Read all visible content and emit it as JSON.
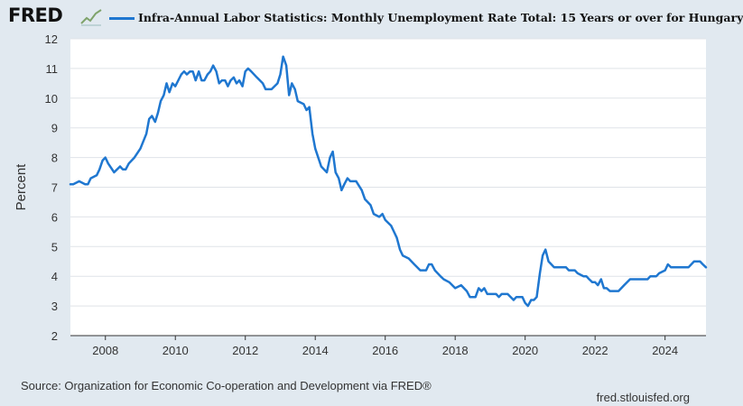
{
  "header": {
    "logo_text": "FRED",
    "logo_icon": "fred-chart-icon",
    "series_label": "Infra-Annual Labor Statistics: Monthly Unemployment Rate Total: 15 Years or over for Hungary",
    "series_color": "#1f77d0"
  },
  "footer": {
    "source": "Source: Organization for Economic Co-operation and Development via FRED®",
    "url": "fred.stlouisfed.org"
  },
  "chart_data": {
    "type": "line",
    "title": "Infra-Annual Labor Statistics: Monthly Unemployment Rate Total: 15 Years or over for Hungary",
    "xlabel": "",
    "ylabel": "Percent",
    "xlim": [
      2007.0,
      2025.17
    ],
    "ylim": [
      2,
      12
    ],
    "y_ticks": [
      2,
      3,
      4,
      5,
      6,
      7,
      8,
      9,
      10,
      11,
      12
    ],
    "x_ticks": [
      2008,
      2010,
      2012,
      2014,
      2016,
      2018,
      2020,
      2022,
      2024
    ],
    "grid": "horizontal",
    "series": [
      {
        "name": "Infra-Annual Labor Statistics: Monthly Unemployment Rate Total: 15 Years or over for Hungary",
        "color": "#1f77d0",
        "points": [
          [
            2007.0,
            7.1
          ],
          [
            2007.08,
            7.1
          ],
          [
            2007.25,
            7.2
          ],
          [
            2007.42,
            7.1
          ],
          [
            2007.5,
            7.1
          ],
          [
            2007.58,
            7.3
          ],
          [
            2007.75,
            7.4
          ],
          [
            2007.83,
            7.6
          ],
          [
            2007.92,
            7.9
          ],
          [
            2008.0,
            8.0
          ],
          [
            2008.08,
            7.8
          ],
          [
            2008.25,
            7.5
          ],
          [
            2008.42,
            7.7
          ],
          [
            2008.5,
            7.6
          ],
          [
            2008.58,
            7.6
          ],
          [
            2008.67,
            7.8
          ],
          [
            2008.83,
            8.0
          ],
          [
            2009.0,
            8.3
          ],
          [
            2009.17,
            8.8
          ],
          [
            2009.25,
            9.3
          ],
          [
            2009.33,
            9.4
          ],
          [
            2009.42,
            9.2
          ],
          [
            2009.5,
            9.5
          ],
          [
            2009.58,
            9.9
          ],
          [
            2009.67,
            10.1
          ],
          [
            2009.75,
            10.5
          ],
          [
            2009.83,
            10.2
          ],
          [
            2009.92,
            10.5
          ],
          [
            2010.0,
            10.4
          ],
          [
            2010.17,
            10.8
          ],
          [
            2010.25,
            10.9
          ],
          [
            2010.33,
            10.8
          ],
          [
            2010.42,
            10.9
          ],
          [
            2010.5,
            10.9
          ],
          [
            2010.58,
            10.6
          ],
          [
            2010.67,
            10.9
          ],
          [
            2010.75,
            10.6
          ],
          [
            2010.83,
            10.6
          ],
          [
            2010.92,
            10.8
          ],
          [
            2011.0,
            10.9
          ],
          [
            2011.08,
            11.1
          ],
          [
            2011.17,
            10.9
          ],
          [
            2011.25,
            10.5
          ],
          [
            2011.33,
            10.6
          ],
          [
            2011.42,
            10.6
          ],
          [
            2011.5,
            10.4
          ],
          [
            2011.58,
            10.6
          ],
          [
            2011.67,
            10.7
          ],
          [
            2011.75,
            10.5
          ],
          [
            2011.83,
            10.6
          ],
          [
            2011.92,
            10.4
          ],
          [
            2012.0,
            10.9
          ],
          [
            2012.08,
            11.0
          ],
          [
            2012.17,
            10.9
          ],
          [
            2012.33,
            10.7
          ],
          [
            2012.5,
            10.5
          ],
          [
            2012.58,
            10.3
          ],
          [
            2012.75,
            10.3
          ],
          [
            2012.92,
            10.5
          ],
          [
            2013.0,
            10.8
          ],
          [
            2013.08,
            11.4
          ],
          [
            2013.17,
            11.1
          ],
          [
            2013.25,
            10.1
          ],
          [
            2013.33,
            10.5
          ],
          [
            2013.42,
            10.3
          ],
          [
            2013.5,
            9.9
          ],
          [
            2013.67,
            9.8
          ],
          [
            2013.75,
            9.6
          ],
          [
            2013.83,
            9.7
          ],
          [
            2013.92,
            8.8
          ],
          [
            2014.0,
            8.3
          ],
          [
            2014.17,
            7.7
          ],
          [
            2014.33,
            7.5
          ],
          [
            2014.42,
            8.0
          ],
          [
            2014.5,
            8.2
          ],
          [
            2014.58,
            7.5
          ],
          [
            2014.67,
            7.3
          ],
          [
            2014.75,
            6.9
          ],
          [
            2014.83,
            7.1
          ],
          [
            2014.92,
            7.3
          ],
          [
            2015.0,
            7.2
          ],
          [
            2015.17,
            7.2
          ],
          [
            2015.33,
            6.9
          ],
          [
            2015.42,
            6.6
          ],
          [
            2015.58,
            6.4
          ],
          [
            2015.67,
            6.1
          ],
          [
            2015.83,
            6.0
          ],
          [
            2015.92,
            6.1
          ],
          [
            2016.0,
            5.9
          ],
          [
            2016.17,
            5.7
          ],
          [
            2016.25,
            5.5
          ],
          [
            2016.33,
            5.3
          ],
          [
            2016.42,
            4.9
          ],
          [
            2016.5,
            4.7
          ],
          [
            2016.67,
            4.6
          ],
          [
            2016.83,
            4.4
          ],
          [
            2017.0,
            4.2
          ],
          [
            2017.17,
            4.2
          ],
          [
            2017.25,
            4.4
          ],
          [
            2017.33,
            4.4
          ],
          [
            2017.42,
            4.2
          ],
          [
            2017.58,
            4.0
          ],
          [
            2017.67,
            3.9
          ],
          [
            2017.83,
            3.8
          ],
          [
            2018.0,
            3.6
          ],
          [
            2018.17,
            3.7
          ],
          [
            2018.33,
            3.5
          ],
          [
            2018.42,
            3.3
          ],
          [
            2018.58,
            3.3
          ],
          [
            2018.67,
            3.6
          ],
          [
            2018.75,
            3.5
          ],
          [
            2018.83,
            3.6
          ],
          [
            2018.92,
            3.4
          ],
          [
            2019.0,
            3.4
          ],
          [
            2019.17,
            3.4
          ],
          [
            2019.25,
            3.3
          ],
          [
            2019.33,
            3.4
          ],
          [
            2019.5,
            3.4
          ],
          [
            2019.67,
            3.2
          ],
          [
            2019.75,
            3.3
          ],
          [
            2019.92,
            3.3
          ],
          [
            2020.0,
            3.1
          ],
          [
            2020.08,
            3.0
          ],
          [
            2020.17,
            3.2
          ],
          [
            2020.25,
            3.2
          ],
          [
            2020.33,
            3.3
          ],
          [
            2020.42,
            4.1
          ],
          [
            2020.5,
            4.7
          ],
          [
            2020.58,
            4.9
          ],
          [
            2020.67,
            4.5
          ],
          [
            2020.75,
            4.4
          ],
          [
            2020.83,
            4.3
          ],
          [
            2021.0,
            4.3
          ],
          [
            2021.17,
            4.3
          ],
          [
            2021.25,
            4.2
          ],
          [
            2021.42,
            4.2
          ],
          [
            2021.5,
            4.1
          ],
          [
            2021.67,
            4.0
          ],
          [
            2021.75,
            4.0
          ],
          [
            2021.83,
            3.9
          ],
          [
            2021.92,
            3.8
          ],
          [
            2022.0,
            3.8
          ],
          [
            2022.08,
            3.7
          ],
          [
            2022.17,
            3.9
          ],
          [
            2022.25,
            3.6
          ],
          [
            2022.33,
            3.6
          ],
          [
            2022.42,
            3.5
          ],
          [
            2022.58,
            3.5
          ],
          [
            2022.67,
            3.5
          ],
          [
            2022.83,
            3.7
          ],
          [
            2023.0,
            3.9
          ],
          [
            2023.17,
            3.9
          ],
          [
            2023.33,
            3.9
          ],
          [
            2023.5,
            3.9
          ],
          [
            2023.58,
            4.0
          ],
          [
            2023.75,
            4.0
          ],
          [
            2023.83,
            4.1
          ],
          [
            2024.0,
            4.2
          ],
          [
            2024.08,
            4.4
          ],
          [
            2024.17,
            4.3
          ],
          [
            2024.42,
            4.3
          ],
          [
            2024.58,
            4.3
          ],
          [
            2024.67,
            4.3
          ],
          [
            2024.83,
            4.5
          ],
          [
            2025.0,
            4.5
          ],
          [
            2025.08,
            4.4
          ],
          [
            2025.17,
            4.3
          ]
        ]
      }
    ]
  }
}
